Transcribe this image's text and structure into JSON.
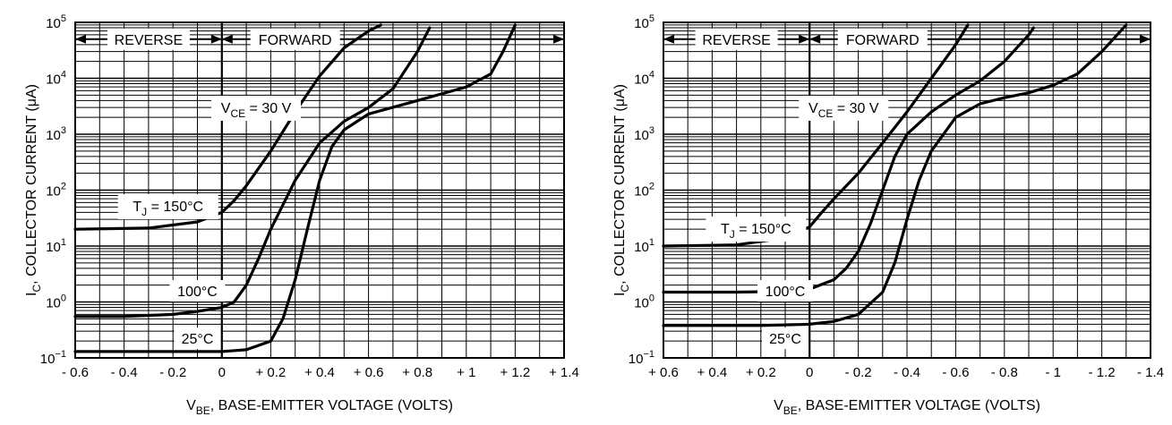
{
  "chart_data": [
    {
      "type": "line",
      "panel": "left",
      "ylabel": {
        "main": "I",
        "sub": "C",
        "rest": ", COLLECTOR CURRENT (μA)"
      },
      "xlabel": {
        "main": "V",
        "sub": "BE",
        "rest": ", BASE-EMITTER VOLTAGE (VOLTS)"
      },
      "xlim": [
        -0.6,
        1.4
      ],
      "ylim": [
        -1,
        5
      ],
      "yscale": "log",
      "grid": true,
      "x_ticks": [
        {
          "v": -0.6,
          "label": "- 0.6"
        },
        {
          "v": -0.4,
          "label": "- 0.4"
        },
        {
          "v": -0.2,
          "label": "- 0.2"
        },
        {
          "v": 0,
          "label": "0"
        },
        {
          "v": 0.2,
          "label": "+ 0.2"
        },
        {
          "v": 0.4,
          "label": "+ 0.4"
        },
        {
          "v": 0.6,
          "label": "+ 0.6"
        },
        {
          "v": 0.8,
          "label": "+ 0.8"
        },
        {
          "v": 1.0,
          "label": "+ 1"
        },
        {
          "v": 1.2,
          "label": "+ 1.2"
        },
        {
          "v": 1.4,
          "label": "+ 1.4"
        }
      ],
      "y_ticks": [
        {
          "exp": -1,
          "label": "10",
          "sup": "−1"
        },
        {
          "exp": 0,
          "label": "10",
          "sup": "0"
        },
        {
          "exp": 1,
          "label": "10",
          "sup": "1"
        },
        {
          "exp": 2,
          "label": "10",
          "sup": "2"
        },
        {
          "exp": 3,
          "label": "10",
          "sup": "3"
        },
        {
          "exp": 4,
          "label": "10",
          "sup": "4"
        },
        {
          "exp": 5,
          "label": "10",
          "sup": "5"
        }
      ],
      "annotations": {
        "reverse": "REVERSE",
        "forward": "FORWARD",
        "vce": {
          "main": "V",
          "sub": "CE",
          "rest": " = 30 V"
        },
        "tj150": {
          "main": "T",
          "sub": "J",
          "rest": " = 150°C"
        },
        "t100": "100°C",
        "t25": "25°C"
      },
      "series": [
        {
          "key": "150C",
          "x": [
            -0.6,
            -0.3,
            -0.1,
            0,
            0.05,
            0.1,
            0.2,
            0.3,
            0.4,
            0.5,
            0.6,
            0.65
          ],
          "y": [
            20,
            21,
            27,
            40,
            65,
            120,
            500,
            2500,
            11000,
            35000,
            70000,
            90000
          ]
        },
        {
          "key": "100C",
          "x": [
            -0.6,
            -0.4,
            -0.2,
            -0.1,
            0,
            0.05,
            0.1,
            0.15,
            0.2,
            0.3,
            0.4,
            0.5,
            0.6,
            0.7,
            0.8,
            0.85
          ],
          "y": [
            0.55,
            0.55,
            0.6,
            0.68,
            0.8,
            1.0,
            2.0,
            6,
            20,
            150,
            700,
            1700,
            3000,
            6500,
            30000,
            80000
          ]
        },
        {
          "key": "25C",
          "x": [
            -0.6,
            -0.2,
            0,
            0.1,
            0.2,
            0.25,
            0.3,
            0.35,
            0.4,
            0.45,
            0.5,
            0.6,
            0.8,
            1.0,
            1.1,
            1.15,
            1.2
          ],
          "y": [
            0.13,
            0.13,
            0.13,
            0.14,
            0.2,
            0.5,
            2.5,
            20,
            150,
            600,
            1200,
            2300,
            4000,
            7000,
            12000,
            30000,
            90000
          ]
        }
      ]
    },
    {
      "type": "line",
      "panel": "right",
      "ylabel": {
        "main": "I",
        "sub": "C",
        "rest": ", COLLECTOR CURRENT (μA)"
      },
      "xlabel": {
        "main": "V",
        "sub": "BE",
        "rest": ", BASE-EMITTER VOLTAGE (VOLTS)"
      },
      "xlim": [
        0.6,
        -1.4
      ],
      "ylim": [
        -1,
        5
      ],
      "yscale": "log",
      "grid": true,
      "x_ticks": [
        {
          "v": 0.6,
          "label": "+ 0.6"
        },
        {
          "v": 0.4,
          "label": "+ 0.4"
        },
        {
          "v": 0.2,
          "label": "+ 0.2"
        },
        {
          "v": 0,
          "label": "0"
        },
        {
          "v": -0.2,
          "label": "- 0.2"
        },
        {
          "v": -0.4,
          "label": "- 0.4"
        },
        {
          "v": -0.6,
          "label": "- 0.6"
        },
        {
          "v": -0.8,
          "label": "- 0.8"
        },
        {
          "v": -1.0,
          "label": "- 1"
        },
        {
          "v": -1.2,
          "label": "- 1.2"
        },
        {
          "v": -1.4,
          "label": "- 1.4"
        }
      ],
      "y_ticks": [
        {
          "exp": -1,
          "label": "10",
          "sup": "−1"
        },
        {
          "exp": 0,
          "label": "10",
          "sup": "0"
        },
        {
          "exp": 1,
          "label": "10",
          "sup": "1"
        },
        {
          "exp": 2,
          "label": "10",
          "sup": "2"
        },
        {
          "exp": 3,
          "label": "10",
          "sup": "3"
        },
        {
          "exp": 4,
          "label": "10",
          "sup": "4"
        },
        {
          "exp": 5,
          "label": "10",
          "sup": "5"
        }
      ],
      "annotations": {
        "reverse": "REVERSE",
        "forward": "FORWARD",
        "vce": {
          "main": "V",
          "sub": "CE",
          "rest": " = 30 V"
        },
        "tj150": {
          "main": "T",
          "sub": "J",
          "rest": " = 150°C"
        },
        "t100": "100°C",
        "t25": "25°C"
      },
      "series": [
        {
          "key": "150C",
          "x": [
            0.6,
            0.3,
            0.1,
            0,
            -0.05,
            -0.1,
            -0.2,
            -0.3,
            -0.4,
            -0.5,
            -0.6,
            -0.65
          ],
          "y": [
            10,
            10.5,
            14,
            22,
            40,
            70,
            200,
            700,
            2500,
            10000,
            40000,
            90000
          ]
        },
        {
          "key": "100C",
          "x": [
            0.6,
            0.3,
            0.1,
            0,
            -0.1,
            -0.15,
            -0.2,
            -0.25,
            -0.3,
            -0.35,
            -0.4,
            -0.5,
            -0.6,
            -0.7,
            -0.8,
            -0.9,
            -0.92
          ],
          "y": [
            1.5,
            1.5,
            1.55,
            1.7,
            2.5,
            4,
            8,
            25,
            100,
            400,
            1000,
            2500,
            5000,
            9000,
            20000,
            60000,
            80000
          ]
        },
        {
          "key": "25C",
          "x": [
            0.6,
            0.2,
            0,
            -0.1,
            -0.2,
            -0.3,
            -0.35,
            -0.4,
            -0.45,
            -0.5,
            -0.6,
            -0.7,
            -0.8,
            -0.9,
            -1.0,
            -1.1,
            -1.2,
            -1.3
          ],
          "y": [
            0.38,
            0.38,
            0.4,
            0.45,
            0.6,
            1.5,
            5,
            30,
            150,
            500,
            2000,
            3500,
            4500,
            5500,
            7500,
            12000,
            30000,
            90000
          ]
        }
      ]
    }
  ]
}
